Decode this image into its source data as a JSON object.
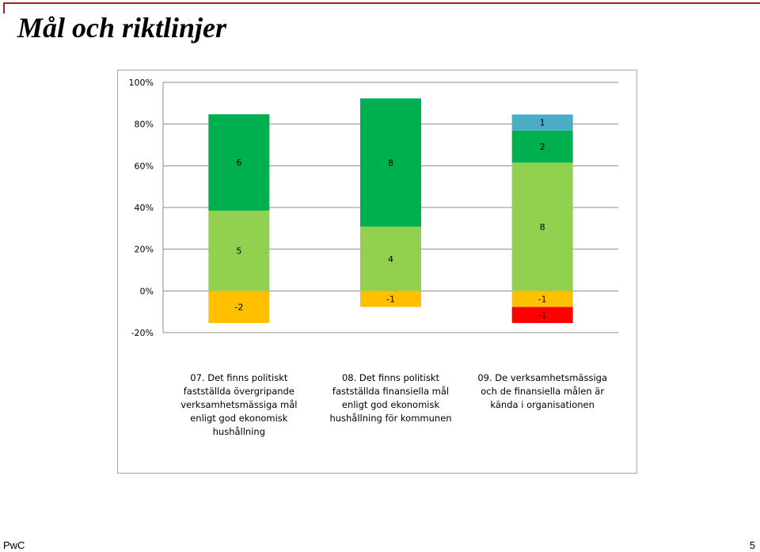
{
  "slide": {
    "title": "Mål och riktlinjer",
    "footer_brand": "PwC",
    "page_number": "5",
    "accent_color": "#a32020"
  },
  "chart_data": {
    "type": "bar",
    "stacked": true,
    "title": "",
    "xlabel": "",
    "ylabel": "",
    "ylim": [
      -0.2,
      1.0
    ],
    "yticks": [
      -0.2,
      0,
      0.2,
      0.4,
      0.6,
      0.8,
      1.0
    ],
    "ytick_labels": [
      "-20%",
      "0%",
      "20%",
      "40%",
      "60%",
      "80%",
      "100%"
    ],
    "grid": true,
    "legend": "none",
    "categories": [
      [
        "07. Det finns politiskt",
        "fastställda övergripande",
        "verksamhetsmässiga mål",
        "enligt god ekonomisk",
        "hushållning"
      ],
      [
        "08. Det finns politiskt",
        "fastställda finansiella mål",
        "enligt god ekonomisk",
        "hushållning för kommunen"
      ],
      [
        "09. De verksamhetsmässiga",
        "och de finansiella målen är",
        "kända i organisationen"
      ]
    ],
    "series": [
      {
        "color": "#ff0000",
        "values": [
          0,
          0,
          -0.077
        ],
        "labels": [
          "",
          "",
          "-1"
        ]
      },
      {
        "color": "#ffc000",
        "values": [
          -0.154,
          -0.077,
          -0.077
        ],
        "labels": [
          "-2",
          "-1",
          "-1"
        ]
      },
      {
        "color": "#92d050",
        "values": [
          0.385,
          0.308,
          0.615
        ],
        "labels": [
          "5",
          "4",
          "8"
        ]
      },
      {
        "color": "#00b050",
        "values": [
          0.462,
          0.615,
          0.154
        ],
        "labels": [
          "6",
          "8",
          "2"
        ]
      },
      {
        "color": "#4bacc6",
        "values": [
          0,
          0,
          0.077
        ],
        "labels": [
          "",
          "",
          "1"
        ]
      }
    ]
  }
}
